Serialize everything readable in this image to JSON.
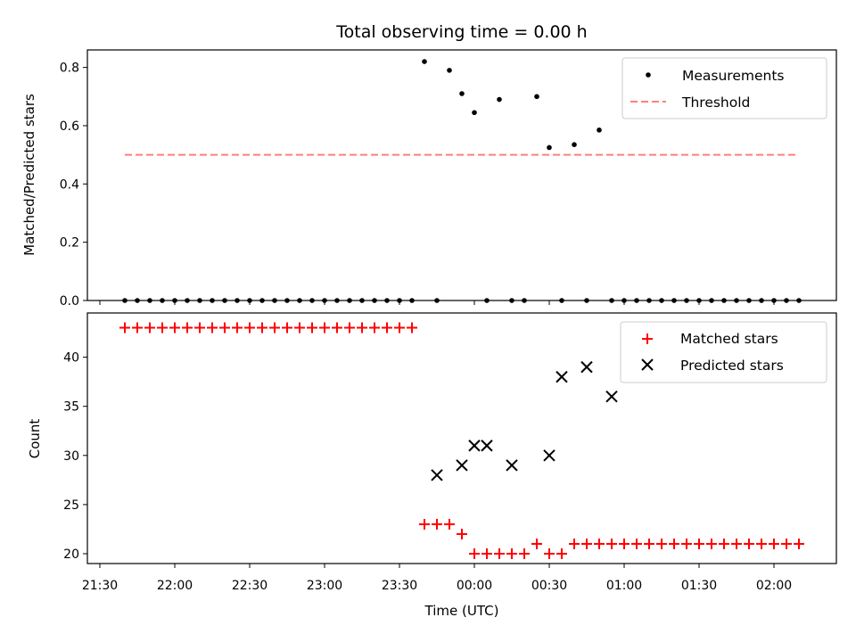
{
  "chart_data": [
    {
      "type": "scatter",
      "panel": "top",
      "title": "Total observing time = 0.00 h",
      "xlabel": "",
      "ylabel": "Matched/Predicted stars",
      "ylim": [
        0,
        0.86
      ],
      "yticks": [
        0.0,
        0.2,
        0.4,
        0.6,
        0.8
      ],
      "ytick_labels": [
        "0.0",
        "0.2",
        "0.4",
        "0.6",
        "0.8"
      ],
      "show_x_tick_labels": false,
      "legend": {
        "placement": "upper right",
        "entries": [
          "Measurements",
          "Threshold"
        ]
      },
      "series": [
        {
          "name": "Measurements",
          "kind": "dots",
          "color": "#000000",
          "x": [
            "21:40",
            "21:45",
            "21:50",
            "21:55",
            "22:00",
            "22:05",
            "22:10",
            "22:15",
            "22:20",
            "22:25",
            "22:30",
            "22:35",
            "22:40",
            "22:45",
            "22:50",
            "22:55",
            "23:00",
            "23:05",
            "23:10",
            "23:15",
            "23:20",
            "23:25",
            "23:30",
            "23:35",
            "23:40",
            "23:45",
            "23:50",
            "23:55",
            "00:00",
            "00:05",
            "00:10",
            "00:15",
            "00:20",
            "00:25",
            "00:30",
            "00:35",
            "00:40",
            "00:45",
            "00:50",
            "00:55",
            "01:00",
            "01:05",
            "01:10",
            "01:15",
            "01:20",
            "01:25",
            "01:30",
            "01:35",
            "01:40",
            "01:45",
            "01:50",
            "01:55",
            "02:00",
            "02:05",
            "02:10"
          ],
          "values": [
            0,
            0,
            0,
            0,
            0,
            0,
            0,
            0,
            0,
            0,
            0,
            0,
            0,
            0,
            0,
            0,
            0,
            0,
            0,
            0,
            0,
            0,
            0,
            0,
            0.82,
            0,
            0.79,
            0.71,
            0.645,
            0,
            0.69,
            0,
            0,
            0.7,
            0.525,
            0,
            0.535,
            0,
            0.585,
            0,
            0,
            0,
            0,
            0,
            0,
            0,
            0,
            0,
            0,
            0,
            0,
            0,
            0,
            0,
            0
          ]
        },
        {
          "name": "Threshold",
          "kind": "dashed-line",
          "color": "#ff7f7f",
          "x": [
            "21:40",
            "02:10"
          ],
          "values": [
            0.5,
            0.5
          ]
        }
      ]
    },
    {
      "type": "scatter",
      "panel": "bottom",
      "title": "",
      "xlabel": "Time (UTC)",
      "ylabel": "Count",
      "ylim": [
        19,
        44.5
      ],
      "yticks": [
        20,
        25,
        30,
        35,
        40
      ],
      "ytick_labels": [
        "20",
        "25",
        "30",
        "35",
        "40"
      ],
      "xticks": [
        "21:30",
        "22:00",
        "22:30",
        "23:00",
        "23:30",
        "00:00",
        "00:30",
        "01:00",
        "01:30",
        "02:00"
      ],
      "legend": {
        "placement": "upper right",
        "entries": [
          "Matched stars",
          "Predicted stars"
        ]
      },
      "series": [
        {
          "name": "Matched stars",
          "kind": "plus",
          "color": "#ff0000",
          "x": [
            "21:40",
            "21:45",
            "21:50",
            "21:55",
            "22:00",
            "22:05",
            "22:10",
            "22:15",
            "22:20",
            "22:25",
            "22:30",
            "22:35",
            "22:40",
            "22:45",
            "22:50",
            "22:55",
            "23:00",
            "23:05",
            "23:10",
            "23:15",
            "23:20",
            "23:25",
            "23:30",
            "23:35",
            "23:40",
            "23:45",
            "23:50",
            "23:55",
            "00:00",
            "00:05",
            "00:10",
            "00:15",
            "00:20",
            "00:25",
            "00:30",
            "00:35",
            "00:40",
            "00:45",
            "00:50",
            "00:55",
            "01:00",
            "01:05",
            "01:10",
            "01:15",
            "01:20",
            "01:25",
            "01:30",
            "01:35",
            "01:40",
            "01:45",
            "01:50",
            "01:55",
            "02:00",
            "02:05",
            "02:10"
          ],
          "values": [
            43,
            43,
            43,
            43,
            43,
            43,
            43,
            43,
            43,
            43,
            43,
            43,
            43,
            43,
            43,
            43,
            43,
            43,
            43,
            43,
            43,
            43,
            43,
            43,
            23,
            23,
            23,
            22,
            20,
            20,
            20,
            20,
            20,
            21,
            20,
            20,
            21,
            21,
            21,
            21,
            21,
            21,
            21,
            21,
            21,
            21,
            21,
            21,
            21,
            21,
            21,
            21,
            21,
            21,
            21
          ]
        },
        {
          "name": "Predicted stars",
          "kind": "x",
          "color": "#000000",
          "x": [
            "23:45",
            "23:55",
            "00:00",
            "00:05",
            "00:15",
            "00:30",
            "00:35",
            "00:45",
            "00:55"
          ],
          "values": [
            28,
            29,
            31,
            31,
            29,
            30,
            38,
            39,
            36
          ]
        }
      ]
    }
  ]
}
